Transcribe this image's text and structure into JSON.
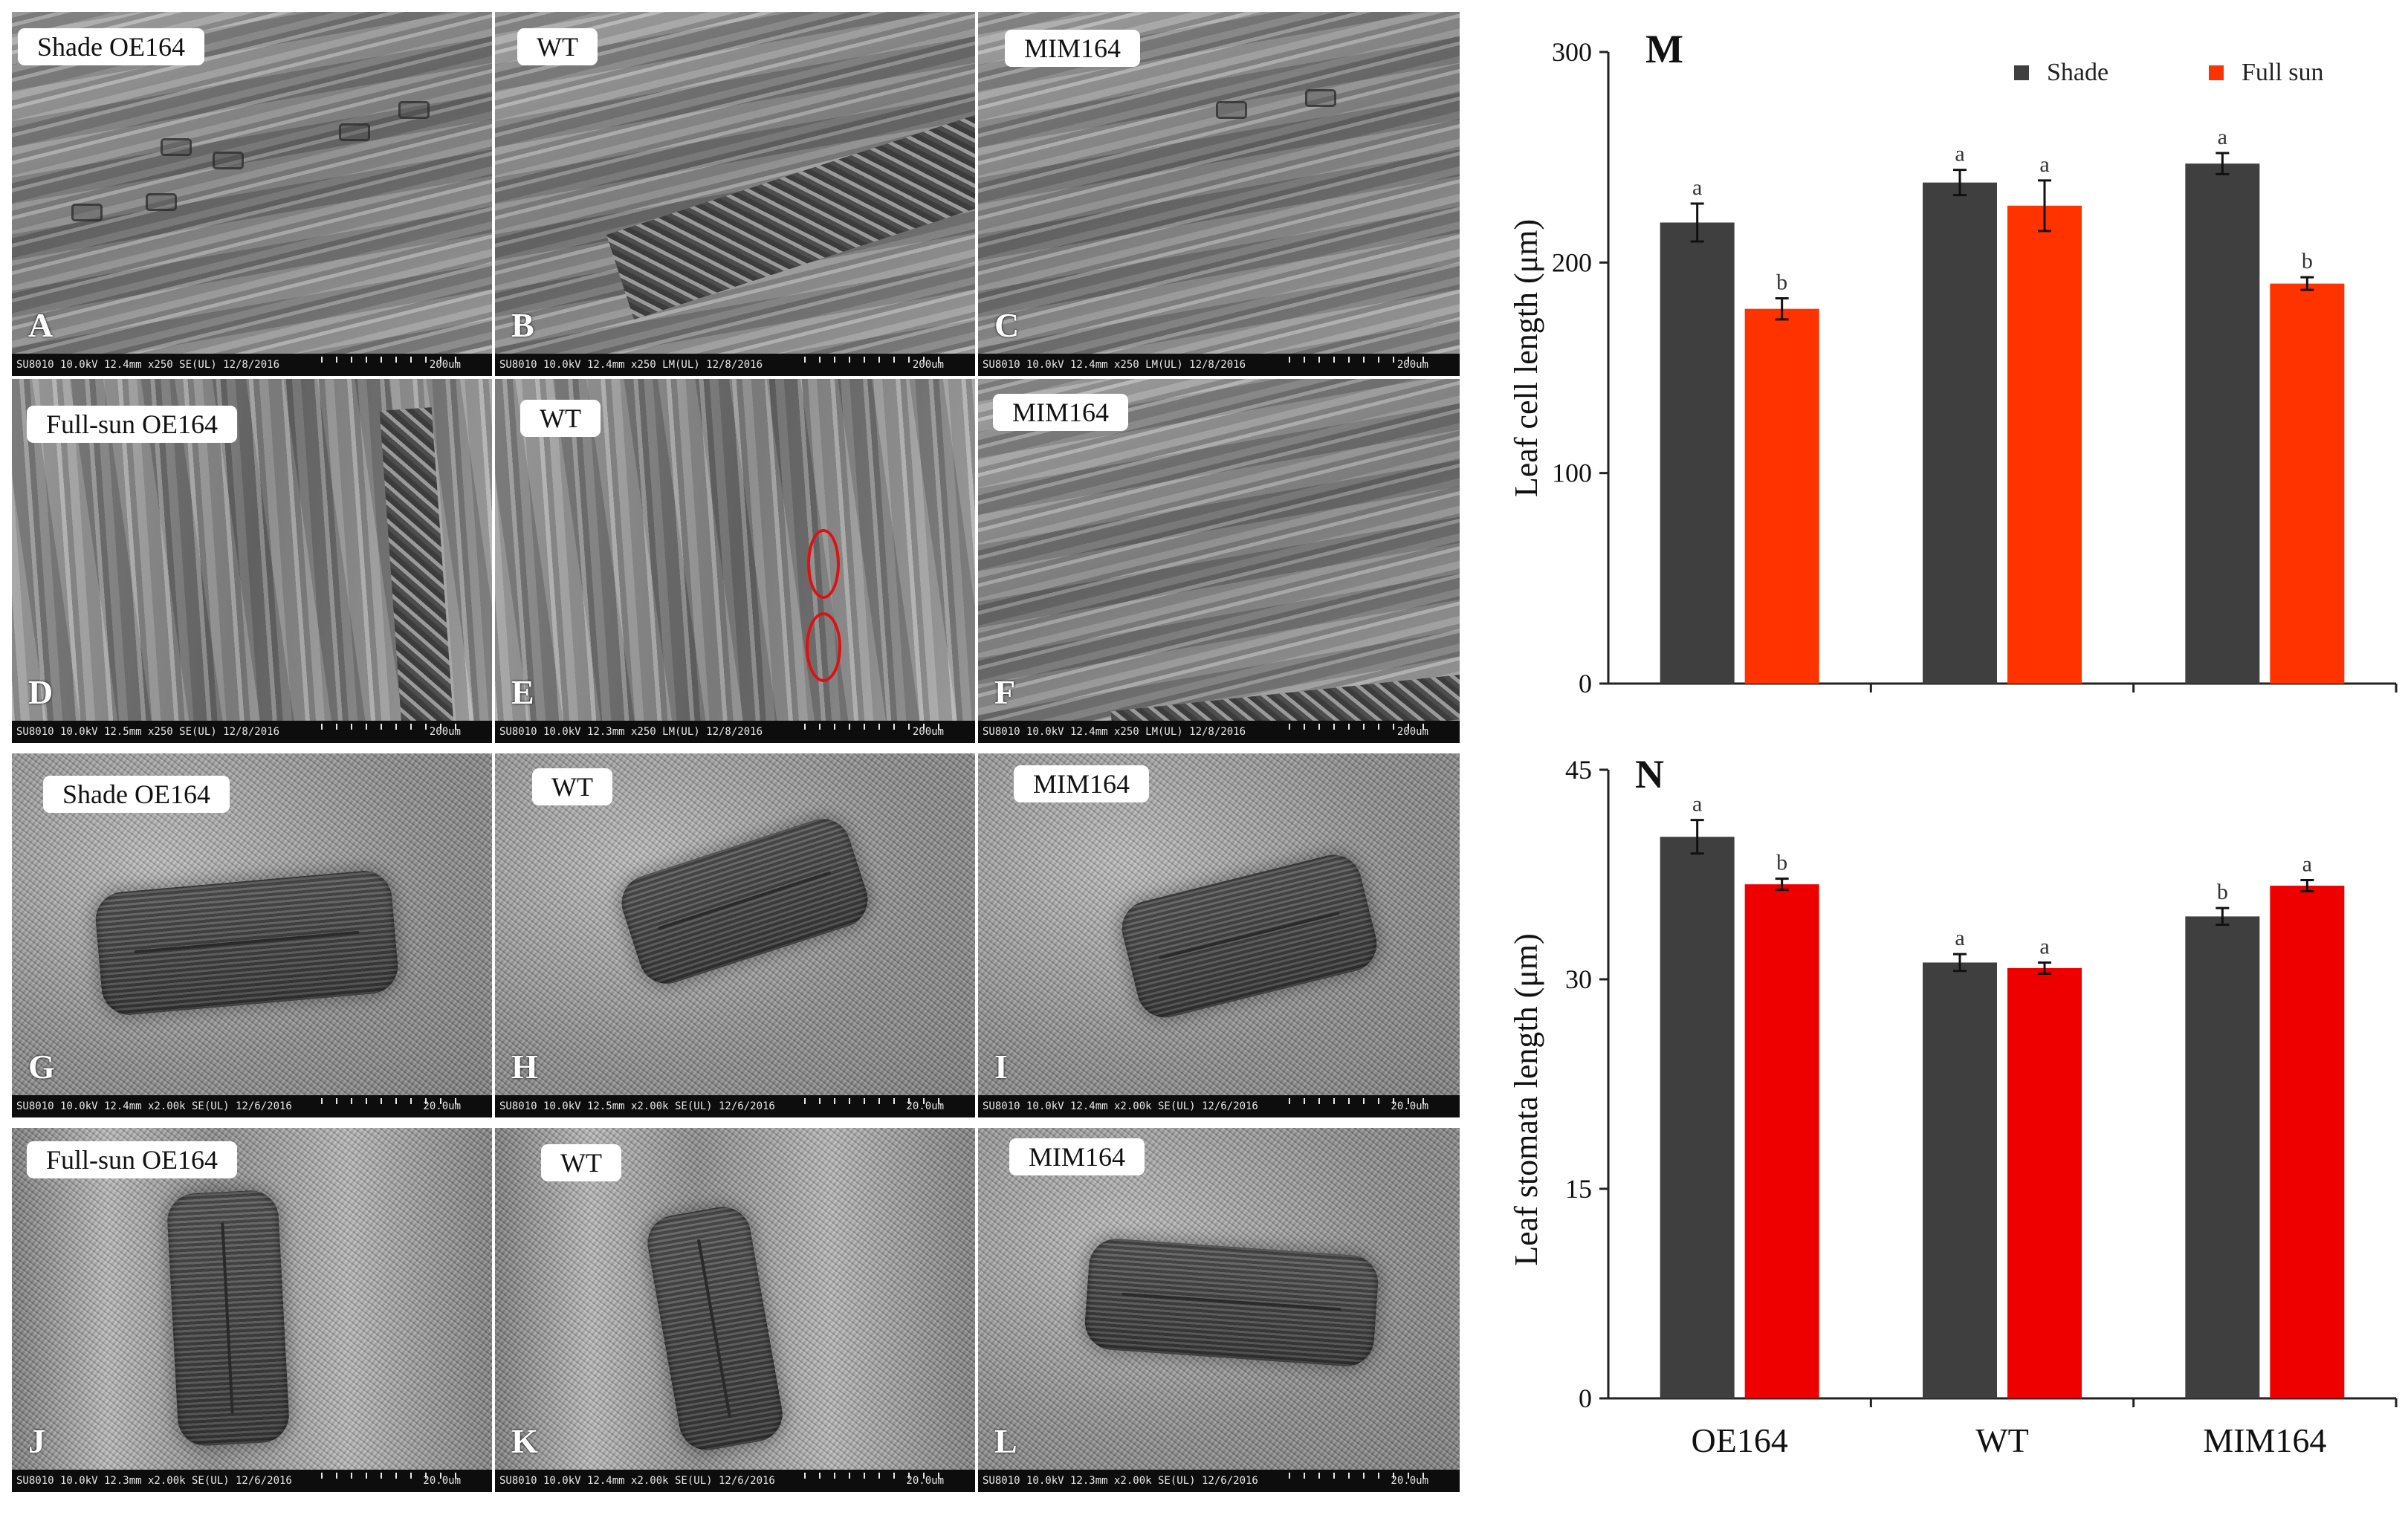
{
  "panels": [
    {
      "letter": "A",
      "label": "Shade OE164",
      "info": "SU8010 10.0kV 12.4mm x250 SE(UL) 12/8/2016",
      "scale": "200um"
    },
    {
      "letter": "B",
      "label": "WT",
      "info": "SU8010 10.0kV 12.4mm x250 LM(UL) 12/8/2016",
      "scale": "200um"
    },
    {
      "letter": "C",
      "label": "MIM164",
      "info": "SU8010 10.0kV 12.4mm x250 LM(UL) 12/8/2016",
      "scale": "200um"
    },
    {
      "letter": "D",
      "label": "Full-sun OE164",
      "info": "SU8010 10.0kV 12.5mm x250 SE(UL) 12/8/2016",
      "scale": "200um"
    },
    {
      "letter": "E",
      "label": "WT",
      "info": "SU8010 10.0kV 12.3mm x250 LM(UL) 12/8/2016",
      "scale": "200um"
    },
    {
      "letter": "F",
      "label": "MIM164",
      "info": "SU8010 10.0kV 12.4mm x250 LM(UL) 12/8/2016",
      "scale": "200um"
    },
    {
      "letter": "G",
      "label": "Shade OE164",
      "info": "SU8010 10.0kV 12.4mm x2.00k SE(UL) 12/6/2016",
      "scale": "20.0um"
    },
    {
      "letter": "H",
      "label": "WT",
      "info": "SU8010 10.0kV 12.5mm x2.00k SE(UL) 12/6/2016",
      "scale": "20.0um"
    },
    {
      "letter": "I",
      "label": "MIM164",
      "info": "SU8010 10.0kV 12.4mm x2.00k SE(UL) 12/6/2016",
      "scale": "20.0um"
    },
    {
      "letter": "J",
      "label": "Full-sun OE164",
      "info": "SU8010 10.0kV 12.3mm x2.00k SE(UL) 12/6/2016",
      "scale": "20.0um"
    },
    {
      "letter": "K",
      "label": "WT",
      "info": "SU8010 10.0kV 12.4mm x2.00k SE(UL) 12/6/2016",
      "scale": "20.0um"
    },
    {
      "letter": "L",
      "label": "MIM164",
      "info": "SU8010 10.0kV 12.3mm x2.00k SE(UL) 12/6/2016",
      "scale": "20.0um"
    }
  ],
  "chart_data": [
    {
      "type": "bar",
      "panel_letter": "M",
      "categories": [
        "OE164",
        "WT",
        "MIM164"
      ],
      "series": [
        {
          "name": "Shade",
          "color": "#3f3f3f",
          "values": [
            219,
            238,
            247
          ],
          "errors": [
            9,
            6,
            5
          ],
          "letters": [
            "a",
            "a",
            "a"
          ]
        },
        {
          "name": "Full sun",
          "color": "#ff3300",
          "values": [
            178,
            227,
            190
          ],
          "errors": [
            5,
            12,
            3
          ],
          "letters": [
            "b",
            "a",
            "b"
          ]
        }
      ],
      "ylabel": "Leaf cell length (μm)",
      "ylim": [
        0,
        300
      ],
      "yticks": [
        "0",
        "100",
        "200",
        "300"
      ],
      "legend_position": "top-right"
    },
    {
      "type": "bar",
      "panel_letter": "N",
      "categories": [
        "OE164",
        "WT",
        "MIM164"
      ],
      "series": [
        {
          "name": "Shade",
          "color": "#3f3f3f",
          "values": [
            40.2,
            31.2,
            34.5
          ],
          "errors": [
            1.2,
            0.6,
            0.6
          ],
          "letters": [
            "a",
            "a",
            "b"
          ]
        },
        {
          "name": "Full sun",
          "color": "#ee0000",
          "values": [
            36.8,
            30.8,
            36.7
          ],
          "errors": [
            0.4,
            0.4,
            0.4
          ],
          "letters": [
            "b",
            "a",
            "a"
          ]
        }
      ],
      "ylabel": "Leaf  stomata length (μm)",
      "ylim": [
        0,
        45
      ],
      "yticks": [
        "0",
        "15",
        "30",
        "45"
      ]
    }
  ]
}
